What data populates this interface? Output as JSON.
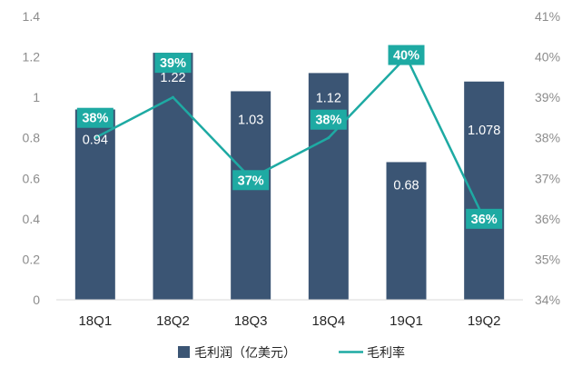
{
  "chart_data": {
    "type": "bar+line",
    "categories": [
      "18Q1",
      "18Q2",
      "18Q3",
      "18Q4",
      "19Q1",
      "19Q2"
    ],
    "series": [
      {
        "name": "毛利润（亿美元）",
        "type": "bar",
        "axis": "left",
        "values": [
          0.94,
          1.22,
          1.03,
          1.12,
          0.68,
          1.078
        ],
        "labels": [
          "0.94",
          "1.22",
          "1.03",
          "1.12",
          "0.68",
          "1.078"
        ]
      },
      {
        "name": "毛利率",
        "type": "line",
        "axis": "right",
        "values": [
          38,
          39,
          37,
          38,
          40,
          36
        ],
        "labels": [
          "38%",
          "39%",
          "37%",
          "38%",
          "40%",
          "36%"
        ]
      }
    ],
    "y_left": {
      "min": 0,
      "max": 1.4,
      "ticks": [
        "0",
        "0.2",
        "0.4",
        "0.6",
        "0.8",
        "1",
        "1.2",
        "1.4"
      ]
    },
    "y_right": {
      "min": 34,
      "max": 41,
      "ticks": [
        "34%",
        "35%",
        "36%",
        "37%",
        "38%",
        "39%",
        "40%",
        "41%"
      ]
    },
    "grid": false,
    "legend": "bottom",
    "colors": {
      "bar": "#3b5574",
      "line": "#1eaaa3",
      "label_box": "#1eaaa3"
    }
  }
}
